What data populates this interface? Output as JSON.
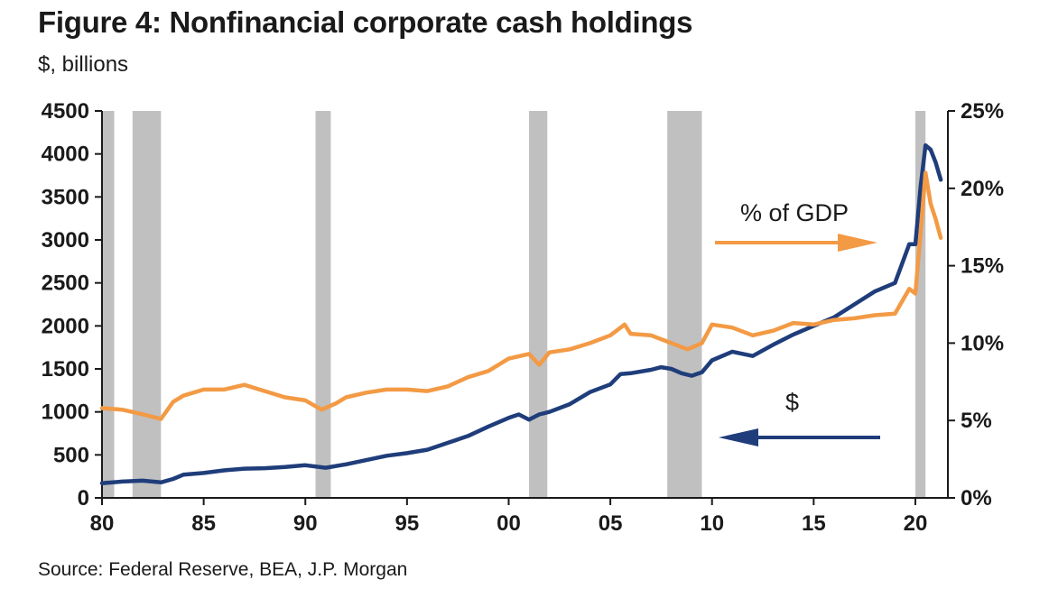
{
  "title": "Figure 4: Nonfinancial corporate cash holdings",
  "subtitle": "$, billions",
  "source": "Source: Federal Reserve, BEA, J.P. Morgan",
  "colors": {
    "dollars": "#1f3d7a",
    "pct_gdp": "#f39a45",
    "recession": "#c0c0c0",
    "axis": "#1a1a1a"
  },
  "chart_data": {
    "type": "line",
    "title": "Figure 4: Nonfinancial corporate cash holdings",
    "ylabel_left": "$, billions",
    "xlim": [
      1980,
      2021.6
    ],
    "ylim_left": [
      0,
      4500
    ],
    "ylim_right": [
      0,
      25
    ],
    "x_ticks": [
      {
        "value": 1980,
        "label": "80"
      },
      {
        "value": 1985,
        "label": "85"
      },
      {
        "value": 1990,
        "label": "90"
      },
      {
        "value": 1995,
        "label": "95"
      },
      {
        "value": 2000,
        "label": "00"
      },
      {
        "value": 2005,
        "label": "05"
      },
      {
        "value": 2010,
        "label": "10"
      },
      {
        "value": 2015,
        "label": "15"
      },
      {
        "value": 2020,
        "label": "20"
      }
    ],
    "y_ticks_left": [
      "0",
      "500",
      "1000",
      "1500",
      "2000",
      "2500",
      "3000",
      "3500",
      "4000",
      "4500"
    ],
    "y_ticks_right": [
      "0%",
      "5%",
      "10%",
      "15%",
      "20%",
      "25%"
    ],
    "recessions": [
      [
        1980.0,
        1980.6
      ],
      [
        1981.5,
        1982.9
      ],
      [
        1990.5,
        1991.25
      ],
      [
        2001.0,
        2001.9
      ],
      [
        2007.8,
        2009.5
      ],
      [
        2020.0,
        2020.5
      ]
    ],
    "series": [
      {
        "name": "$",
        "axis": "left",
        "x": [
          1980,
          1981,
          1982,
          1982.9,
          1983.5,
          1984,
          1985,
          1986,
          1987,
          1988,
          1989,
          1990,
          1991,
          1992,
          1993,
          1994,
          1995,
          1996,
          1997,
          1998,
          1999,
          2000,
          2000.5,
          2001,
          2001.5,
          2002,
          2003,
          2004,
          2005,
          2005.5,
          2006,
          2007,
          2007.5,
          2008,
          2008.5,
          2009,
          2009.5,
          2010,
          2011,
          2012,
          2013,
          2014,
          2015,
          2016,
          2017,
          2018,
          2019,
          2019.7,
          2020.0,
          2020.25,
          2020.5,
          2020.75,
          2021.0,
          2021.25
        ],
        "values": [
          170,
          190,
          200,
          180,
          220,
          270,
          290,
          320,
          340,
          345,
          360,
          380,
          350,
          390,
          440,
          490,
          520,
          560,
          640,
          720,
          830,
          930,
          970,
          910,
          970,
          1000,
          1090,
          1230,
          1320,
          1440,
          1450,
          1490,
          1520,
          1500,
          1450,
          1420,
          1460,
          1600,
          1700,
          1650,
          1780,
          1900,
          2000,
          2100,
          2250,
          2400,
          2500,
          2950,
          2950,
          3600,
          4100,
          4050,
          3900,
          3700
        ]
      },
      {
        "name": "% of GDP",
        "axis": "right",
        "x": [
          1980,
          1981,
          1982,
          1982.9,
          1983.5,
          1984,
          1985,
          1986,
          1987,
          1988,
          1989,
          1990,
          1990.8,
          1991.5,
          1992,
          1993,
          1994,
          1995,
          1996,
          1997,
          1998,
          1999,
          2000,
          2001,
          2001.5,
          2002,
          2003,
          2004,
          2005,
          2005.7,
          2006,
          2007,
          2008,
          2008.8,
          2009.5,
          2010,
          2011,
          2012,
          2013,
          2014,
          2015,
          2016,
          2017,
          2018,
          2019,
          2019.7,
          2020.0,
          2020.25,
          2020.5,
          2020.75,
          2021.0,
          2021.25
        ],
        "values": [
          5.8,
          5.7,
          5.4,
          5.1,
          6.2,
          6.6,
          7.0,
          7.0,
          7.3,
          6.9,
          6.5,
          6.3,
          5.7,
          6.1,
          6.5,
          6.8,
          7.0,
          7.0,
          6.9,
          7.2,
          7.8,
          8.2,
          9.0,
          9.3,
          8.6,
          9.4,
          9.6,
          10.0,
          10.5,
          11.2,
          10.6,
          10.5,
          10.0,
          9.6,
          10.0,
          11.2,
          11.0,
          10.5,
          10.8,
          11.3,
          11.2,
          11.5,
          11.6,
          11.8,
          11.9,
          13.5,
          13.2,
          17.0,
          21.0,
          19.0,
          18.0,
          16.8
        ]
      }
    ],
    "annotations": [
      {
        "text": "% of GDP",
        "arrow": "right"
      },
      {
        "text": "$",
        "arrow": "left"
      }
    ]
  }
}
